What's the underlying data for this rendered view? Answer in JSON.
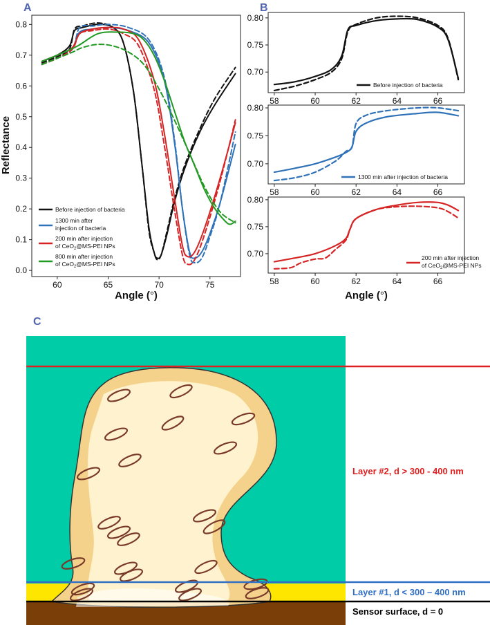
{
  "chart_data": [
    {
      "panel": "A",
      "type": "line",
      "xlabel": "Angle (°)",
      "ylabel": "Reflectance",
      "xlim": [
        57.5,
        78
      ],
      "ylim": [
        -0.02,
        0.83
      ],
      "xticks": [
        60,
        65,
        70,
        75
      ],
      "yticks": [
        0.0,
        0.1,
        0.2,
        0.3,
        0.4,
        0.5,
        0.6,
        0.7,
        0.8
      ],
      "legend": [
        "Before injection of bacteria",
        "1300 min after injection of bacteria",
        "200 min after injection of CeO2@MS-PEI NPs",
        "800 min after injection of CeO2@MS-PEI NPs"
      ],
      "series": [
        {
          "name": "Before injection of bacteria",
          "color": "#111111",
          "style": "solid",
          "x": [
            58.5,
            60,
            61.2,
            61.7,
            62.5,
            64,
            65.5,
            66.5,
            67.5,
            68.3,
            69,
            69.5,
            69.8,
            70.2,
            70.8,
            71.5,
            72.5,
            74,
            75.5,
            77.5
          ],
          "y": [
            0.68,
            0.7,
            0.73,
            0.78,
            0.79,
            0.8,
            0.79,
            0.74,
            0.58,
            0.35,
            0.14,
            0.06,
            0.04,
            0.05,
            0.12,
            0.22,
            0.33,
            0.45,
            0.54,
            0.64
          ]
        },
        {
          "name": "Before injection of bacteria (dashed)",
          "color": "#111111",
          "style": "dashed",
          "x": [
            58.5,
            60,
            61.2,
            61.7,
            62.5,
            64,
            65.5,
            66.5,
            67.5,
            68.3,
            69,
            69.5,
            69.8,
            70.2,
            70.8,
            71.5,
            72.5,
            74,
            75.5,
            77.5
          ],
          "y": [
            0.675,
            0.695,
            0.72,
            0.785,
            0.795,
            0.805,
            0.79,
            0.74,
            0.58,
            0.35,
            0.13,
            0.06,
            0.035,
            0.05,
            0.13,
            0.23,
            0.34,
            0.46,
            0.56,
            0.66
          ]
        },
        {
          "name": "1300 min after injection of bacteria",
          "color": "#2f72b8",
          "style": "solid",
          "x": [
            58.5,
            60,
            61.5,
            62.2,
            63.5,
            65,
            67,
            69,
            70.5,
            71.5,
            72.3,
            73,
            73.5,
            74.2,
            75,
            76,
            77.5
          ],
          "y": [
            0.68,
            0.7,
            0.725,
            0.775,
            0.785,
            0.79,
            0.78,
            0.74,
            0.62,
            0.42,
            0.2,
            0.06,
            0.04,
            0.06,
            0.12,
            0.22,
            0.41
          ]
        },
        {
          "name": "1300 min after injection of bacteria (dashed)",
          "color": "#2f72b8",
          "style": "dashed",
          "x": [
            58.5,
            60,
            61.5,
            62.2,
            63.5,
            65,
            67,
            69,
            70.5,
            71.5,
            72.3,
            73,
            73.5,
            74.2,
            75,
            76,
            77.5
          ],
          "y": [
            0.67,
            0.69,
            0.72,
            0.79,
            0.795,
            0.8,
            0.79,
            0.75,
            0.63,
            0.43,
            0.2,
            0.05,
            0.025,
            0.04,
            0.11,
            0.22,
            0.45
          ]
        },
        {
          "name": "200 min after injection of CeO2@MS-PEI NPs",
          "color": "#d62424",
          "style": "solid",
          "x": [
            58.5,
            60,
            61.5,
            62.2,
            63.5,
            65,
            66.5,
            68,
            69.5,
            70.5,
            71.5,
            72.3,
            72.8,
            73.5,
            74.5,
            76,
            77.5
          ],
          "y": [
            0.68,
            0.7,
            0.725,
            0.77,
            0.785,
            0.79,
            0.785,
            0.75,
            0.62,
            0.45,
            0.24,
            0.08,
            0.045,
            0.06,
            0.14,
            0.3,
            0.48
          ]
        },
        {
          "name": "200 min after injection of CeO2@MS-PEI NPs (dashed)",
          "color": "#d62424",
          "style": "dashed",
          "x": [
            58.5,
            60,
            61.5,
            62.2,
            63.5,
            65,
            66.5,
            68,
            69.5,
            70.5,
            71.5,
            72.3,
            72.8,
            73.5,
            74.5,
            76,
            77.5
          ],
          "y": [
            0.67,
            0.69,
            0.72,
            0.77,
            0.78,
            0.785,
            0.77,
            0.73,
            0.59,
            0.41,
            0.2,
            0.05,
            0.02,
            0.035,
            0.12,
            0.29,
            0.49
          ]
        },
        {
          "name": "800 min after injection of CeO2@MS-PEI NPs",
          "color": "#229922",
          "style": "solid",
          "x": [
            58.5,
            60,
            62,
            64,
            66,
            67.5,
            68.5,
            69.5,
            70.5,
            71.5,
            72.5,
            73.5,
            74.5,
            75.5,
            76.5,
            77,
            77.5
          ],
          "y": [
            0.68,
            0.7,
            0.73,
            0.77,
            0.775,
            0.77,
            0.75,
            0.7,
            0.62,
            0.52,
            0.42,
            0.34,
            0.26,
            0.2,
            0.16,
            0.15,
            0.16
          ]
        },
        {
          "name": "800 min after injection of CeO2@MS-PEI NPs (dashed)",
          "color": "#229922",
          "style": "dashed",
          "x": [
            58.5,
            60,
            61.5,
            62.5,
            64,
            65.5,
            67,
            68.5,
            70,
            71.5,
            73,
            74.5,
            76,
            77.5
          ],
          "y": [
            0.67,
            0.69,
            0.71,
            0.725,
            0.735,
            0.73,
            0.71,
            0.67,
            0.59,
            0.49,
            0.38,
            0.27,
            0.19,
            0.155
          ]
        }
      ]
    },
    {
      "panel": "B-top",
      "type": "line",
      "xlim": [
        57.7,
        67.3
      ],
      "ylim": [
        0.662,
        0.81
      ],
      "xticks": [
        58,
        60,
        62,
        64,
        66
      ],
      "yticks": [
        0.7,
        0.75,
        0.8
      ],
      "legend": [
        "Before injection of bacteria"
      ],
      "series": [
        {
          "name": "Before injection of bacteria",
          "color": "#111111",
          "style": "solid",
          "x": [
            58,
            59,
            60,
            60.8,
            61.3,
            61.6,
            62,
            63,
            64,
            65,
            66,
            66.5,
            67
          ],
          "y": [
            0.677,
            0.682,
            0.692,
            0.705,
            0.73,
            0.778,
            0.786,
            0.795,
            0.798,
            0.797,
            0.783,
            0.76,
            0.688
          ]
        },
        {
          "name": "Before injection of bacteria (dashed)",
          "color": "#111111",
          "style": "dashed",
          "x": [
            58,
            59,
            60,
            60.8,
            61.3,
            61.6,
            62,
            63,
            64,
            65,
            66,
            66.5,
            67
          ],
          "y": [
            0.666,
            0.674,
            0.686,
            0.7,
            0.725,
            0.775,
            0.788,
            0.8,
            0.803,
            0.8,
            0.786,
            0.762,
            0.686
          ]
        }
      ]
    },
    {
      "panel": "B-middle",
      "type": "line",
      "xlim": [
        57.7,
        67.3
      ],
      "ylim": [
        0.664,
        0.805
      ],
      "xticks": [
        58,
        60,
        62,
        64,
        66
      ],
      "yticks": [
        0.7,
        0.75,
        0.8
      ],
      "legend": [
        "1300 min after injection of bacteria"
      ],
      "series": [
        {
          "name": "1300 min after injection of bacteria",
          "color": "#2f72b8",
          "style": "solid",
          "x": [
            58,
            59,
            60,
            61,
            61.5,
            61.8,
            62,
            62.5,
            63.5,
            65,
            66,
            67
          ],
          "y": [
            0.685,
            0.692,
            0.7,
            0.712,
            0.72,
            0.73,
            0.758,
            0.773,
            0.784,
            0.79,
            0.792,
            0.786
          ]
        },
        {
          "name": "1300 min after injection of bacteria (dashed)",
          "color": "#2f72b8",
          "style": "dashed",
          "x": [
            58,
            59,
            60,
            61,
            61.5,
            61.8,
            62,
            62.5,
            63.5,
            65,
            66,
            67
          ],
          "y": [
            0.67,
            0.675,
            0.685,
            0.705,
            0.722,
            0.73,
            0.772,
            0.787,
            0.795,
            0.8,
            0.8,
            0.795
          ]
        }
      ]
    },
    {
      "panel": "B-bottom",
      "type": "line",
      "xlim": [
        57.7,
        67.3
      ],
      "ylim": [
        0.664,
        0.805
      ],
      "xticks": [
        58,
        60,
        62,
        64,
        66
      ],
      "yticks": [
        0.7,
        0.75,
        0.8
      ],
      "legend": [
        "200 min after injection of CeO2@MS-PEI NPs"
      ],
      "series": [
        {
          "name": "200 min after injection of CeO2@MS-PEI NPs",
          "color": "#d62424",
          "style": "solid",
          "x": [
            58,
            59,
            60,
            61,
            61.5,
            61.7,
            62,
            63,
            64,
            65,
            66,
            66.5,
            67
          ],
          "y": [
            0.685,
            0.692,
            0.7,
            0.715,
            0.728,
            0.745,
            0.765,
            0.782,
            0.79,
            0.795,
            0.795,
            0.79,
            0.78
          ]
        },
        {
          "name": "200 min after injection of CeO2@MS-PEI NPs (dashed)",
          "color": "#d62424",
          "style": "dashed",
          "x": [
            58,
            58.8,
            59.3,
            60,
            60.5,
            61,
            61.5,
            61.7,
            62,
            63,
            64,
            65,
            66,
            66.5,
            67
          ],
          "y": [
            0.672,
            0.674,
            0.683,
            0.69,
            0.692,
            0.708,
            0.725,
            0.745,
            0.765,
            0.782,
            0.787,
            0.788,
            0.785,
            0.778,
            0.766
          ]
        }
      ]
    }
  ],
  "labels": {
    "panel_a": "A",
    "panel_b": "B",
    "panel_c": "C",
    "a_ylabel": "Reflectance",
    "a_xlabel_text": "Angle (",
    "b_xlabel_text": "Angle (",
    "deg": "°",
    "close_paren": ")",
    "legend": {
      "black": "Before injection of bacteria",
      "blue_l1": "1300 min after",
      "blue_l2": "injection of bacteria",
      "red_l1": "200 min after injection",
      "red_l2a": "of CeO",
      "red_l2b": "2",
      "red_l2c": "@MS-PEI NPs",
      "green_l1": "800 min after injection",
      "green_l2a": "of CeO",
      "green_l2b": "2",
      "green_l2c": "@MS-PEI NPs",
      "b_top": "Before injection of bacteria",
      "b_mid": "1300 min after injection of bacteria",
      "b_bot_l1": "200 min after injection",
      "b_bot_l2a": "of CeO",
      "b_bot_l2b": "2",
      "b_bot_l2c": "@MS-PEI NPs"
    }
  },
  "diagram": {
    "layer2": "Layer #2, d > 300 - 400 nm",
    "layer1": "Layer #1, d < 300 – 400 nm",
    "sensor": "Sensor surface, d = 0",
    "colors": {
      "medium": "#00cca8",
      "layer1_band": "#ffe600",
      "substrate": "#7a3e08",
      "layer2_line": "#e02020",
      "layer1_line": "#2f6fc6",
      "sensor_line": "#000000",
      "biofilm_outer": "#f5d28c",
      "biofilm_inner": "#fff3cf",
      "bacteria": "#7a3a2a"
    }
  }
}
